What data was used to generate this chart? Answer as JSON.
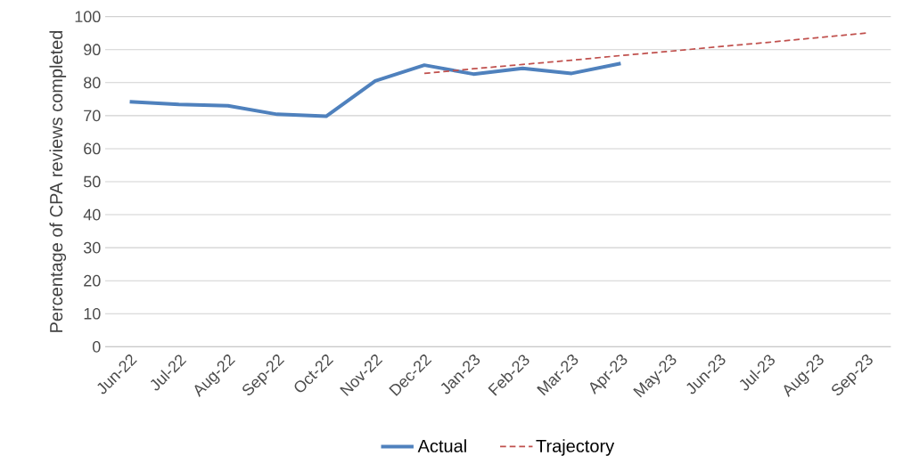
{
  "chart_data": {
    "type": "line",
    "ylabel": "Percentage of CPA reviews completed",
    "categories": [
      "Jun-22",
      "Jul-22",
      "Aug-22",
      "Sep-22",
      "Oct-22",
      "Nov-22",
      "Dec-22",
      "Jan-23",
      "Feb-23",
      "Mar-23",
      "Apr-23",
      "May-23",
      "Jun-23",
      "Jul-23",
      "Aug-23",
      "Sep-23"
    ],
    "series": [
      {
        "name": "Actual",
        "color": "#4f81bd",
        "line_style": "solid",
        "values": [
          74.2,
          73.4,
          73,
          70.4,
          69.8,
          80.5,
          85.3,
          82.6,
          84.3,
          82.8,
          85.8,
          null,
          null,
          null,
          null,
          null
        ]
      },
      {
        "name": "Trajectory",
        "color": "#c0504d",
        "line_style": "dashed",
        "values": [
          null,
          null,
          null,
          null,
          null,
          null,
          82.8,
          84.2,
          85.5,
          86.8,
          88.2,
          89.5,
          90.9,
          92.2,
          93.6,
          95
        ]
      }
    ],
    "ylim": [
      0,
      100
    ],
    "yticks": [
      0,
      10,
      20,
      30,
      40,
      50,
      60,
      70,
      80,
      90,
      100
    ],
    "grid": "y",
    "legend": "bottom"
  }
}
